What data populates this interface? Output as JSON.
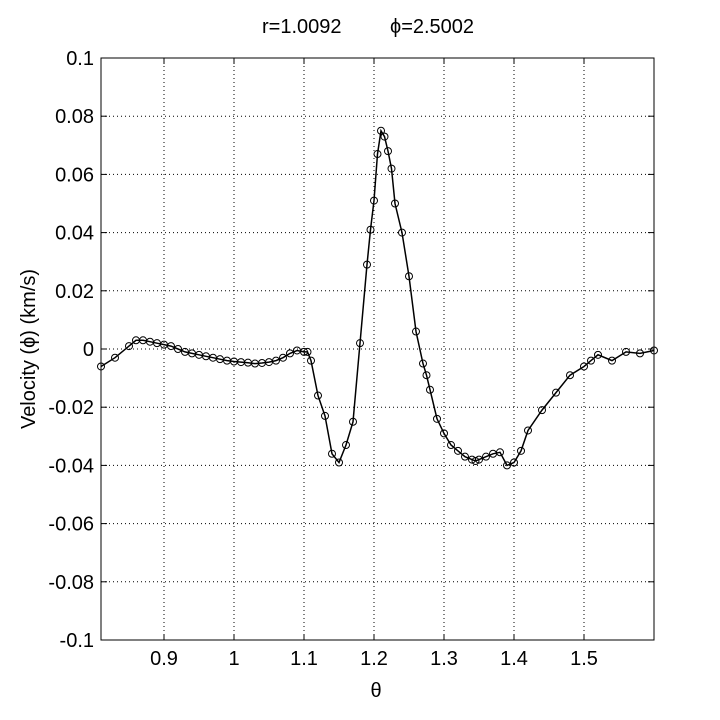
{
  "chart_data": {
    "type": "line",
    "title_left": "r=1.0092",
    "title_right": "ϕ=2.5002",
    "xlabel": "θ",
    "ylabel": "Velocity (ϕ) (km/s)",
    "xlim": [
      0.81,
      1.6
    ],
    "ylim": [
      -0.1,
      0.1
    ],
    "xticks": [
      0.9,
      1,
      1.1,
      1.2,
      1.3,
      1.4,
      1.5
    ],
    "xtick_labels": [
      "0.9",
      "1",
      "1.1",
      "1.2",
      "1.3",
      "1.4",
      "1.5"
    ],
    "yticks": [
      0.1,
      0.08,
      0.06,
      0.04,
      0.02,
      0,
      -0.02,
      -0.04,
      -0.06,
      -0.08,
      -0.1
    ],
    "ytick_labels": [
      "0.1",
      "0.08",
      "0.06",
      "0.04",
      "0.02",
      "0",
      "-0.02",
      "-0.04",
      "-0.06",
      "-0.08",
      "-0.1"
    ],
    "grid": true,
    "line_color": "#000000",
    "marker": "circle",
    "series": [
      {
        "x": [
          0.81,
          0.83,
          0.85,
          0.86,
          0.87,
          0.88,
          0.89,
          0.9,
          0.91,
          0.92,
          0.93,
          0.94,
          0.95,
          0.96,
          0.97,
          0.98,
          0.99,
          1.0,
          1.01,
          1.02,
          1.03,
          1.04,
          1.05,
          1.06,
          1.07,
          1.08,
          1.09,
          1.1,
          1.105,
          1.11,
          1.12,
          1.13,
          1.14,
          1.15,
          1.16,
          1.17,
          1.18,
          1.19,
          1.195,
          1.2,
          1.205,
          1.21,
          1.215,
          1.22,
          1.225,
          1.23,
          1.24,
          1.25,
          1.26,
          1.27,
          1.275,
          1.28,
          1.29,
          1.3,
          1.31,
          1.32,
          1.33,
          1.34,
          1.345,
          1.35,
          1.36,
          1.37,
          1.38,
          1.39,
          1.4,
          1.41,
          1.42,
          1.44,
          1.46,
          1.48,
          1.5,
          1.51,
          1.52,
          1.54,
          1.56,
          1.58,
          1.6
        ],
        "y": [
          -0.006,
          -0.003,
          0.001,
          0.003,
          0.003,
          0.0025,
          0.002,
          0.0015,
          0.001,
          0.0,
          -0.001,
          -0.0015,
          -0.002,
          -0.0025,
          -0.003,
          -0.0035,
          -0.004,
          -0.0043,
          -0.0045,
          -0.0047,
          -0.005,
          -0.0048,
          -0.0045,
          -0.004,
          -0.003,
          -0.0015,
          -0.0005,
          -0.001,
          -0.001,
          -0.004,
          -0.016,
          -0.023,
          -0.036,
          -0.039,
          -0.033,
          -0.025,
          0.002,
          0.029,
          0.041,
          0.051,
          0.067,
          0.075,
          0.073,
          0.068,
          0.062,
          0.05,
          0.04,
          0.025,
          0.006,
          -0.005,
          -0.009,
          -0.014,
          -0.024,
          -0.029,
          -0.033,
          -0.035,
          -0.037,
          -0.038,
          -0.0385,
          -0.038,
          -0.037,
          -0.036,
          -0.0355,
          -0.04,
          -0.039,
          -0.035,
          -0.028,
          -0.021,
          -0.015,
          -0.009,
          -0.006,
          -0.004,
          -0.002,
          -0.004,
          -0.001,
          -0.0015,
          -0.0005
        ]
      }
    ]
  }
}
